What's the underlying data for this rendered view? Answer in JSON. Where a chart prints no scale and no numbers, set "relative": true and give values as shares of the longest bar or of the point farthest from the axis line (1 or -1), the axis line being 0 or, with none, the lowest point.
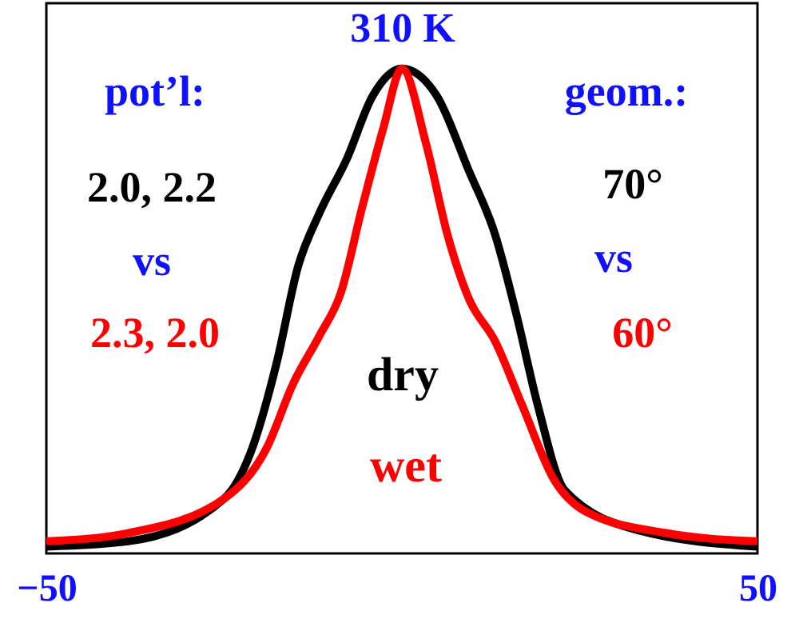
{
  "chart_data": {
    "type": "line",
    "title": "310 K",
    "relative": true,
    "xlim": [
      -50,
      50
    ],
    "xticks": [
      -50,
      50
    ],
    "tick_labels": "x",
    "grid": false,
    "legend": false,
    "marker": "none",
    "line_style": "solid",
    "annotations": [
      "pot’l:",
      "2.0, 2.2",
      "vs",
      "2.3, 2.0",
      "geom.:",
      "70°",
      "vs",
      "60°"
    ],
    "series": [
      {
        "name": "dry",
        "color": "#000000",
        "x": [
          -50,
          -38.5,
          -25,
          -21.3,
          -17.6,
          -14.6,
          -11.6,
          -7.8,
          -4.1,
          0,
          4.9,
          9.4,
          13.1,
          16.1,
          19.1,
          22.9,
          33.4,
          50
        ],
        "values": [
          0.014,
          0.025,
          0.113,
          0.207,
          0.394,
          0.592,
          0.702,
          0.812,
          0.944,
          1.0,
          0.944,
          0.79,
          0.658,
          0.493,
          0.306,
          0.13,
          0.047,
          0.014
        ]
      },
      {
        "name": "wet",
        "color": "#ff0000",
        "x": [
          -50,
          -38.5,
          -25,
          -19,
          -15.3,
          -11.6,
          -8.6,
          -5.6,
          -2.6,
          0,
          3.4,
          6.4,
          9.4,
          13.1,
          16.9,
          21.4,
          25.9,
          37.1,
          50
        ],
        "values": [
          0.025,
          0.042,
          0.113,
          0.218,
          0.35,
          0.449,
          0.537,
          0.713,
          0.878,
          1.0,
          0.845,
          0.658,
          0.526,
          0.438,
          0.306,
          0.152,
          0.086,
          0.042,
          0.025
        ]
      }
    ]
  }
}
